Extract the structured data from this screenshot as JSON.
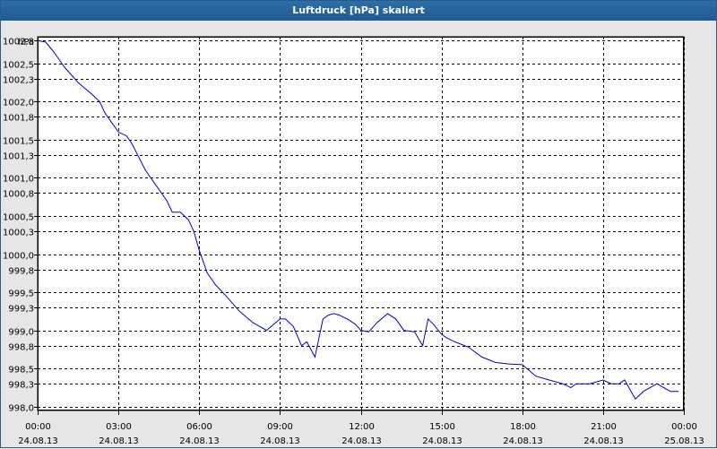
{
  "window": {
    "title": "Luftdruck [hPa] skaliert"
  },
  "chart_data": {
    "type": "line",
    "title": "Luftdruck [hPa] skaliert",
    "y_unit": "hPa",
    "ylim": [
      997.95,
      1002.85
    ],
    "grid": true,
    "y_ticks": [
      {
        "value": 1002.8,
        "label": "1002,8"
      },
      {
        "value": 1002.5,
        "label": "1002,5"
      },
      {
        "value": 1002.3,
        "label": "1002,3"
      },
      {
        "value": 1002.0,
        "label": "1002,0"
      },
      {
        "value": 1001.8,
        "label": "1001,8"
      },
      {
        "value": 1001.5,
        "label": "1001,5"
      },
      {
        "value": 1001.3,
        "label": "1001,3"
      },
      {
        "value": 1001.0,
        "label": "1001,0"
      },
      {
        "value": 1000.8,
        "label": "1000,8"
      },
      {
        "value": 1000.5,
        "label": "1000,5"
      },
      {
        "value": 1000.3,
        "label": "1000,3"
      },
      {
        "value": 1000.0,
        "label": "1000,0"
      },
      {
        "value": 999.8,
        "label": "999,8"
      },
      {
        "value": 999.5,
        "label": "999,5"
      },
      {
        "value": 999.3,
        "label": "999,3"
      },
      {
        "value": 999.0,
        "label": "999,0"
      },
      {
        "value": 998.8,
        "label": "998,8"
      },
      {
        "value": 998.5,
        "label": "998,5"
      },
      {
        "value": 998.3,
        "label": "998,3"
      },
      {
        "value": 998.0,
        "label": "998,0"
      }
    ],
    "x_ticks": [
      {
        "hour": 0,
        "time": "00:00",
        "date": "24.08.13"
      },
      {
        "hour": 3,
        "time": "03:00",
        "date": "24.08.13"
      },
      {
        "hour": 6,
        "time": "06:00",
        "date": "24.08.13"
      },
      {
        "hour": 9,
        "time": "09:00",
        "date": "24.08.13"
      },
      {
        "hour": 12,
        "time": "12:00",
        "date": "24.08.13"
      },
      {
        "hour": 15,
        "time": "15:00",
        "date": "24.08.13"
      },
      {
        "hour": 18,
        "time": "18:00",
        "date": "24.08.13"
      },
      {
        "hour": 21,
        "time": "21:00",
        "date": "24.08.13"
      },
      {
        "hour": 24,
        "time": "00:00",
        "date": "25.08.13"
      }
    ],
    "series": [
      {
        "color": "#0000cc",
        "x": [
          0,
          0.3,
          0.6,
          1.0,
          1.5,
          2.0,
          2.3,
          2.5,
          2.8,
          3.0,
          3.3,
          3.5,
          4.0,
          4.5,
          4.8,
          5.0,
          5.3,
          5.6,
          5.8,
          6.0,
          6.1,
          6.3,
          6.6,
          7.0,
          7.5,
          8.0,
          8.5,
          9.0,
          9.2,
          9.5,
          9.8,
          10.0,
          10.3,
          10.6,
          10.8,
          11.0,
          11.2,
          11.5,
          11.8,
          12.0,
          12.3,
          12.6,
          13.0,
          13.3,
          13.6,
          14.0,
          14.3,
          14.5,
          14.7,
          15.0,
          15.2,
          15.5,
          16.0,
          16.5,
          17.0,
          17.5,
          18.0,
          18.5,
          19.0,
          19.5,
          19.8,
          20.0,
          20.5,
          21.0,
          21.3,
          21.6,
          21.8,
          22.2,
          22.5,
          23.0,
          23.5,
          23.8
        ],
        "y": [
          1002.8,
          1002.78,
          1002.65,
          1002.45,
          1002.25,
          1002.1,
          1002.0,
          1001.85,
          1001.7,
          1001.6,
          1001.55,
          1001.45,
          1001.1,
          1000.85,
          1000.7,
          1000.55,
          1000.55,
          1000.45,
          1000.3,
          1000.05,
          999.95,
          999.75,
          999.6,
          999.45,
          999.25,
          999.1,
          999.0,
          999.15,
          999.15,
          999.05,
          998.8,
          998.85,
          998.65,
          999.15,
          999.2,
          999.22,
          999.2,
          999.15,
          999.08,
          999.0,
          998.98,
          999.1,
          999.22,
          999.15,
          999.0,
          998.98,
          998.8,
          999.15,
          999.08,
          998.95,
          998.9,
          998.85,
          998.78,
          998.65,
          998.58,
          998.56,
          998.55,
          998.4,
          998.35,
          998.3,
          998.25,
          998.3,
          998.3,
          998.35,
          998.3,
          998.3,
          998.35,
          998.1,
          998.2,
          998.3,
          998.2,
          998.2
        ]
      }
    ]
  }
}
